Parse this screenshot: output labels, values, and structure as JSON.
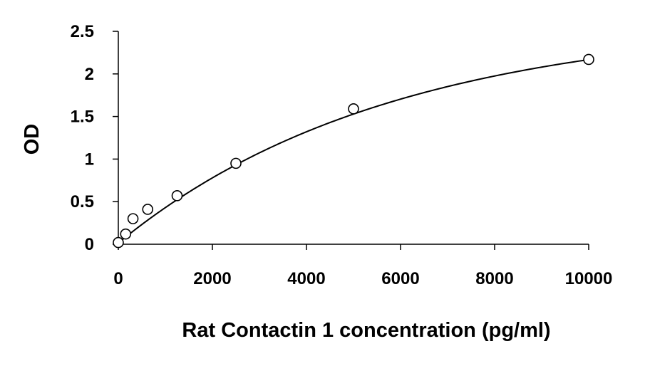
{
  "chart_data": {
    "type": "scatter",
    "title": "",
    "xlabel": "Rat Contactin 1 concentration (pg/ml)",
    "ylabel": "OD",
    "xlim": [
      0,
      10000
    ],
    "ylim": [
      0,
      2.5
    ],
    "x_ticks": [
      0,
      2000,
      4000,
      6000,
      8000,
      10000
    ],
    "x_tick_labels": [
      "0",
      "2000",
      "4000",
      "6000",
      "8000",
      "10000"
    ],
    "y_ticks": [
      0,
      0.5,
      1,
      1.5,
      2,
      2.5
    ],
    "y_tick_labels": [
      "0",
      "0.5",
      "1",
      "1.5",
      "2",
      "2.5"
    ],
    "grid": false,
    "legend": "none",
    "marker": "open-circle",
    "trendline": "fitted smooth curve",
    "series": [
      {
        "x": [
          0,
          156,
          312,
          625,
          1250,
          2500,
          5000,
          10000
        ],
        "y": [
          0.02,
          0.12,
          0.3,
          0.41,
          0.57,
          0.95,
          1.59,
          2.17
        ]
      }
    ]
  }
}
